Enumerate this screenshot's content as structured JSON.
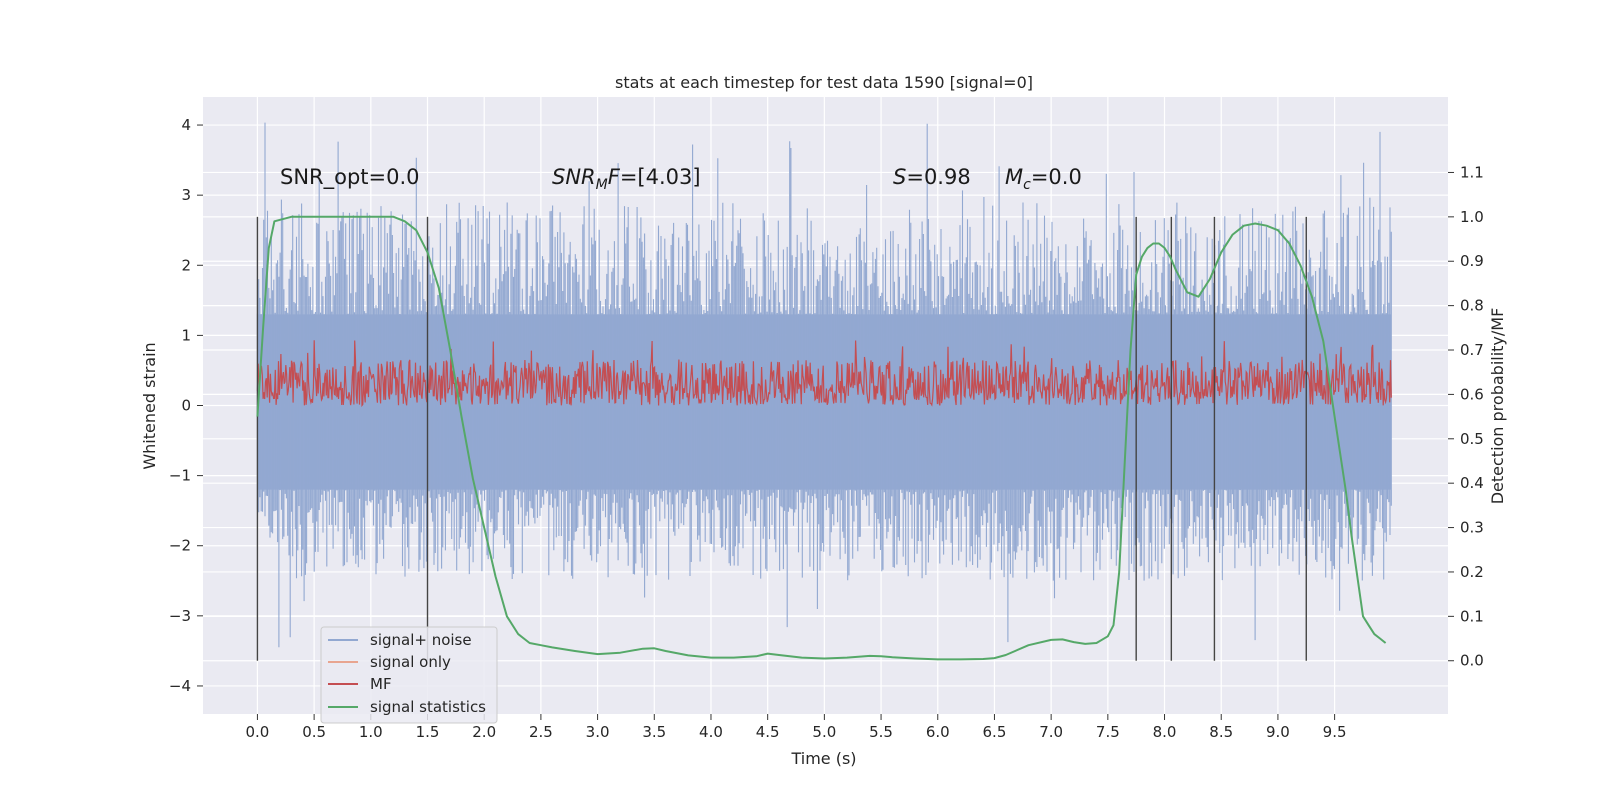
{
  "chart_data": {
    "type": "line",
    "title": "stats at each timestep for test data 1590 [signal=0]",
    "xlabel": "Time (s)",
    "ylabel": "Whitened strain",
    "y2label": "Detection probability/MF",
    "xlim": [
      -0.48,
      10.5
    ],
    "ylim": [
      -4.4,
      4.4
    ],
    "y2lim": [
      -0.12,
      1.27
    ],
    "grid": true,
    "xticks": [
      "0.0",
      "0.5",
      "1.0",
      "1.5",
      "2.0",
      "2.5",
      "3.0",
      "3.5",
      "4.0",
      "4.5",
      "5.0",
      "5.5",
      "6.0",
      "6.5",
      "7.0",
      "7.5",
      "8.0",
      "8.5",
      "9.0",
      "9.5"
    ],
    "yticks": [
      "4",
      "3",
      "2",
      "1",
      "0",
      "−1",
      "−2",
      "−3",
      "−4"
    ],
    "y2ticks": [
      "1.1",
      "1.0",
      "0.9",
      "0.8",
      "0.7",
      "0.6",
      "0.5",
      "0.4",
      "0.3",
      "0.2",
      "0.1",
      "0.0"
    ],
    "annotations": {
      "snr_opt": "SNR_opt=0.0",
      "snr_mf_symbol": "SNR",
      "snr_mf_sub": "M",
      "snr_mf_rest": "F",
      "snr_mf_value": "=[4.03]",
      "s_symbol": "S",
      "s_value": "=0.98",
      "mc_symbol": "M",
      "mc_sub": "c",
      "mc_value": "=0.0"
    },
    "legend": {
      "placement": "lower-left",
      "entries": [
        {
          "label": "signal+ noise",
          "color": "#92a8d1"
        },
        {
          "label": "signal only",
          "color": "#e8a590"
        },
        {
          "label": "MF",
          "color": "#c44e52"
        },
        {
          "label": "signal statistics",
          "color": "#55a868"
        }
      ]
    },
    "series": [
      {
        "name": "signal+ noise",
        "axis": "left",
        "color": "#92a8d1",
        "envelope": {
          "x": [
            0.0,
            10.0
          ],
          "core_low": -1.2,
          "core_high": 1.3,
          "typical_peak_high": 2.9,
          "typical_peak_low": -2.5,
          "max": 4.05,
          "min": -3.9
        }
      },
      {
        "name": "MF",
        "axis": "left",
        "color": "#c44e52",
        "envelope": {
          "x": [
            0.0,
            10.0
          ],
          "low": 0.0,
          "typical_high": 0.65,
          "max": 0.95
        }
      },
      {
        "name": "signal statistics",
        "axis": "right",
        "color": "#55a868",
        "x": [
          0.0,
          0.05,
          0.1,
          0.15,
          0.3,
          0.5,
          0.8,
          1.0,
          1.2,
          1.3,
          1.4,
          1.5,
          1.6,
          1.7,
          1.8,
          1.9,
          2.0,
          2.1,
          2.2,
          2.3,
          2.4,
          2.5,
          2.6,
          2.8,
          3.0,
          3.2,
          3.4,
          3.5,
          3.6,
          3.8,
          4.0,
          4.2,
          4.4,
          4.5,
          4.6,
          4.8,
          5.0,
          5.2,
          5.4,
          5.5,
          5.6,
          5.8,
          6.0,
          6.2,
          6.4,
          6.5,
          6.6,
          6.8,
          7.0,
          7.1,
          7.2,
          7.3,
          7.4,
          7.5,
          7.55,
          7.6,
          7.65,
          7.7,
          7.75,
          7.8,
          7.85,
          7.9,
          7.95,
          8.0,
          8.05,
          8.1,
          8.2,
          8.3,
          8.4,
          8.5,
          8.6,
          8.7,
          8.8,
          8.9,
          9.0,
          9.1,
          9.2,
          9.3,
          9.4,
          9.5,
          9.6,
          9.65,
          9.7,
          9.75,
          9.8,
          9.85,
          9.9,
          9.95
        ],
        "values": [
          0.55,
          0.75,
          0.93,
          0.99,
          1.0,
          1.0,
          1.0,
          1.0,
          1.0,
          0.99,
          0.97,
          0.92,
          0.84,
          0.7,
          0.55,
          0.41,
          0.3,
          0.19,
          0.1,
          0.06,
          0.04,
          0.035,
          0.03,
          0.022,
          0.015,
          0.018,
          0.027,
          0.028,
          0.022,
          0.012,
          0.007,
          0.007,
          0.01,
          0.016,
          0.013,
          0.007,
          0.005,
          0.007,
          0.011,
          0.01,
          0.008,
          0.005,
          0.003,
          0.003,
          0.004,
          0.006,
          0.013,
          0.035,
          0.047,
          0.048,
          0.042,
          0.038,
          0.04,
          0.055,
          0.08,
          0.2,
          0.45,
          0.7,
          0.87,
          0.91,
          0.93,
          0.94,
          0.94,
          0.93,
          0.91,
          0.88,
          0.83,
          0.82,
          0.86,
          0.92,
          0.96,
          0.98,
          0.985,
          0.98,
          0.97,
          0.94,
          0.89,
          0.82,
          0.72,
          0.55,
          0.38,
          0.28,
          0.19,
          0.1,
          0.08,
          0.06,
          0.05,
          0.04
        ]
      }
    ],
    "vertical_markers": [
      0.0,
      1.5,
      7.75,
      8.06,
      8.44,
      9.25
    ]
  }
}
